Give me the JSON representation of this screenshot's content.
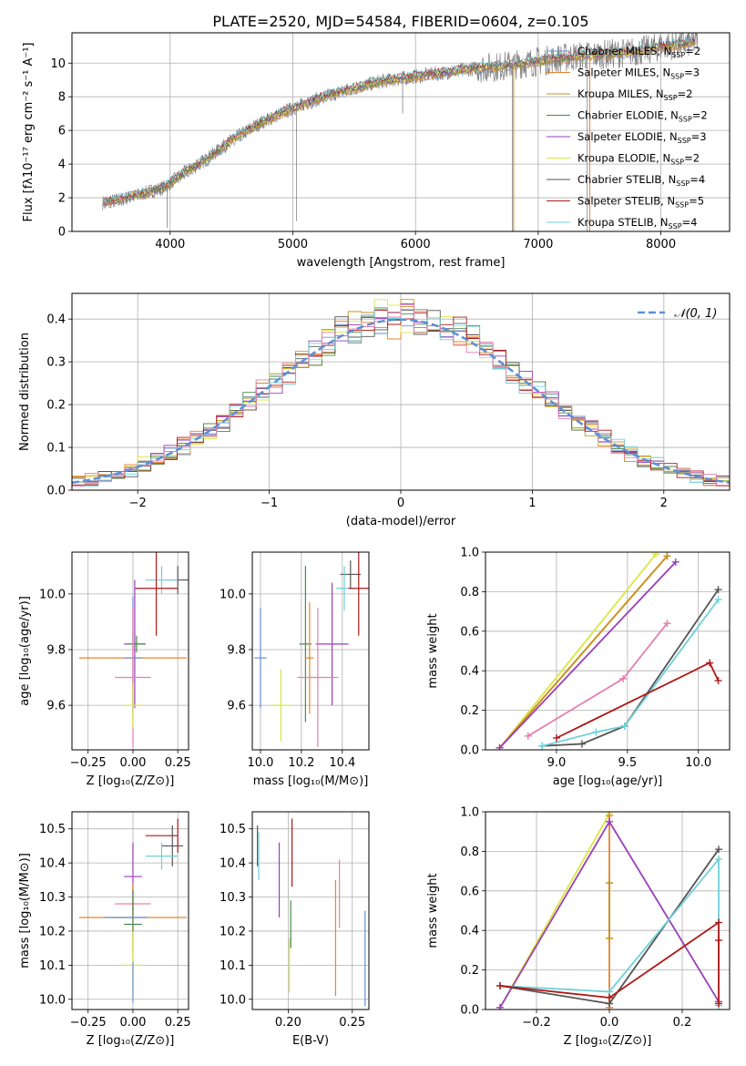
{
  "title": "PLATE=2520, MJD=54584, FIBERID=0604, z=0.105",
  "colors": {
    "chab_miles": "#6a8fd6",
    "salp_miles": "#e8832a",
    "krou_miles": "#c8921a",
    "chab_elodie": "#4a8a4a",
    "salp_elodie": "#9a3fb8",
    "krou_elodie": "#d8e840",
    "chab_stelib": "#555555",
    "salp_stelib": "#b01818",
    "krou_stelib": "#6fd0d8",
    "pink": "#e47fb0",
    "gray_spec": "#808080",
    "gauss": "#5b8fd8",
    "grid": "#b0b0b0"
  },
  "chart_data": [
    {
      "type": "line",
      "name": "spectrum",
      "xlabel": "wavelength [Angstrom, rest frame]",
      "ylabel": "Flux [fλ10⁻¹⁷ erg cm⁻² s⁻¹ A⁻¹]",
      "xlim": [
        3200,
        8560
      ],
      "ylim": [
        0,
        11.8
      ],
      "xticks": [
        4000,
        5000,
        6000,
        7000,
        8000
      ],
      "yticks": [
        0,
        2,
        4,
        6,
        8,
        10
      ],
      "grid": true,
      "legend_position": "right",
      "legend": [
        {
          "label": "Chabrier MILES, N",
          "sub": "SSP",
          "suffix": "=2",
          "color": "chab_miles"
        },
        {
          "label": "Salpeter MILES, N",
          "sub": "SSP",
          "suffix": "=3",
          "color": "salp_miles"
        },
        {
          "label": "Kroupa MILES, N",
          "sub": "SSP",
          "suffix": "=2",
          "color": "krou_miles"
        },
        {
          "label": "Chabrier ELODIE, N",
          "sub": "SSP",
          "suffix": "=2",
          "color": "chab_elodie"
        },
        {
          "label": "Salpeter ELODIE, N",
          "sub": "SSP",
          "suffix": "=3",
          "color": "salp_elodie"
        },
        {
          "label": "Kroupa ELODIE, N",
          "sub": "SSP",
          "suffix": "=2",
          "color": "krou_elodie"
        },
        {
          "label": "Chabrier STELIB, N",
          "sub": "SSP",
          "suffix": "=4",
          "color": "chab_stelib"
        },
        {
          "label": "Salpeter STELIB, N",
          "sub": "SSP",
          "suffix": "=5",
          "color": "salp_stelib"
        },
        {
          "label": "Kroupa STELIB, N",
          "sub": "SSP",
          "suffix": "=4",
          "color": "krou_stelib"
        }
      ],
      "continuum": [
        [
          3450,
          1.7
        ],
        [
          3600,
          1.9
        ],
        [
          3800,
          2.3
        ],
        [
          3950,
          2.6
        ],
        [
          4100,
          3.4
        ],
        [
          4300,
          4.3
        ],
        [
          4500,
          5.4
        ],
        [
          4700,
          6.3
        ],
        [
          4900,
          7.0
        ],
        [
          5100,
          7.6
        ],
        [
          5300,
          8.1
        ],
        [
          5500,
          8.5
        ],
        [
          5700,
          8.9
        ],
        [
          5900,
          9.1
        ],
        [
          6100,
          9.3
        ],
        [
          6300,
          9.5
        ],
        [
          6500,
          9.7
        ],
        [
          6700,
          9.8
        ],
        [
          6900,
          10.0
        ],
        [
          7100,
          10.2
        ],
        [
          7300,
          10.4
        ],
        [
          7500,
          10.5
        ],
        [
          7700,
          10.6
        ],
        [
          7900,
          10.8
        ],
        [
          8000,
          11.0
        ],
        [
          8150,
          11.1
        ],
        [
          8300,
          11.3
        ]
      ]
    },
    {
      "type": "line",
      "name": "residual_histogram",
      "xlabel": "(data-model)/error",
      "ylabel": "Normed distribution",
      "xlim": [
        -2.5,
        2.5
      ],
      "ylim": [
        0,
        0.46
      ],
      "xticks": [
        -2,
        -1,
        0,
        1,
        2
      ],
      "yticks": [
        0.0,
        0.1,
        0.2,
        0.3,
        0.4
      ],
      "grid": true,
      "legend_position": "top-right",
      "legend": [
        {
          "label": "𝒩(0, 1)",
          "color": "gauss"
        }
      ],
      "gaussian": {
        "mu": 0,
        "sigma": 1
      }
    },
    {
      "type": "scatter",
      "name": "z_age",
      "xlabel": "Z [log₁₀(Z/Z⊙)]",
      "ylabel": "age  [log₁₀(age/yr)]",
      "xlim": [
        -0.34,
        0.31
      ],
      "ylim": [
        9.44,
        10.15
      ],
      "xticks": [
        -0.25,
        0.0,
        0.25
      ],
      "yticks": [
        9.6,
        9.8,
        10.0
      ],
      "points": [
        {
          "x": 0.25,
          "y": 10.05,
          "xerr": 0.06,
          "yerr": 0.05,
          "color": "chab_stelib"
        },
        {
          "x": 0.16,
          "y": 10.05,
          "xerr": 0.09,
          "yerr": 0.05,
          "color": "krou_stelib"
        },
        {
          "x": 0.13,
          "y": 10.02,
          "xerr": 0.12,
          "yerr": 0.17,
          "color": "salp_stelib"
        },
        {
          "x": 0.01,
          "y": 9.82,
          "xerr": 0.06,
          "yerr": 0.23,
          "color": "salp_elodie"
        },
        {
          "x": 0.02,
          "y": 9.82,
          "xerr": 0.05,
          "yerr": 0.03,
          "color": "chab_elodie"
        },
        {
          "x": 0.0,
          "y": 9.77,
          "xerr": 0.3,
          "yerr": 0.18,
          "color": "salp_miles"
        },
        {
          "x": 0.0,
          "y": 9.77,
          "xerr": 0.05,
          "yerr": 0.22,
          "color": "chab_miles"
        },
        {
          "x": 0.0,
          "y": 9.7,
          "xerr": 0.1,
          "yerr": 0.25,
          "color": "pink"
        },
        {
          "x": 0.0,
          "y": 9.6,
          "xerr": 0.05,
          "yerr": 0.08,
          "color": "krou_elodie"
        }
      ]
    },
    {
      "type": "scatter",
      "name": "mass_age",
      "xlabel": "mass [log₁₀(M/M⊙)]",
      "ylabel": "",
      "xlim": [
        9.96,
        10.53
      ],
      "ylim": [
        9.44,
        10.15
      ],
      "xticks": [
        10.0,
        10.2,
        10.4
      ],
      "yticks": [
        9.6,
        9.8,
        10.0
      ],
      "points": [
        {
          "x": 10.44,
          "y": 10.07,
          "xerr": 0.05,
          "yerr": 0.05,
          "color": "chab_stelib"
        },
        {
          "x": 10.41,
          "y": 10.02,
          "xerr": 0.04,
          "yerr": 0.08,
          "color": "krou_stelib"
        },
        {
          "x": 10.48,
          "y": 10.02,
          "xerr": 0.05,
          "yerr": 0.17,
          "color": "salp_stelib"
        },
        {
          "x": 10.35,
          "y": 9.82,
          "xerr": 0.08,
          "yerr": 0.22,
          "color": "salp_elodie"
        },
        {
          "x": 10.22,
          "y": 9.82,
          "xerr": 0.03,
          "yerr": 0.28,
          "color": "chab_elodie"
        },
        {
          "x": 10.24,
          "y": 9.77,
          "xerr": 0.02,
          "yerr": 0.2,
          "color": "salp_miles"
        },
        {
          "x": 10.0,
          "y": 9.77,
          "xerr": 0.03,
          "yerr": 0.18,
          "color": "chab_miles"
        },
        {
          "x": 10.28,
          "y": 9.7,
          "xerr": 0.1,
          "yerr": 0.25,
          "color": "pink"
        },
        {
          "x": 10.1,
          "y": 9.6,
          "xerr": 0.05,
          "yerr": 0.13,
          "color": "krou_elodie"
        }
      ]
    },
    {
      "type": "line",
      "name": "age_weight",
      "xlabel": "age  [log₁₀(age/yr)]",
      "ylabel": "mass weight",
      "xlim": [
        8.5,
        10.22
      ],
      "ylim": [
        0,
        1.0
      ],
      "xticks": [
        9.0,
        9.5,
        10.0
      ],
      "yticks": [
        0.0,
        0.2,
        0.4,
        0.6,
        0.8,
        1.0
      ],
      "series": [
        {
          "color": "krou_elodie",
          "x": [
            8.6,
            9.7
          ],
          "y": [
            0.01,
            0.99
          ]
        },
        {
          "color": "salp_miles",
          "x": [
            8.6,
            9.78
          ],
          "y": [
            0.01,
            0.98
          ]
        },
        {
          "color": "krou_miles",
          "x": [
            8.6,
            9.78
          ],
          "y": [
            0.01,
            0.98
          ]
        },
        {
          "color": "salp_elodie",
          "x": [
            8.6,
            9.84
          ],
          "y": [
            0.01,
            0.95
          ]
        },
        {
          "color": "pink",
          "x": [
            8.8,
            9.47,
            9.78
          ],
          "y": [
            0.07,
            0.36,
            0.64
          ]
        },
        {
          "color": "chab_stelib",
          "x": [
            8.9,
            9.18,
            9.48,
            10.14
          ],
          "y": [
            0.02,
            0.03,
            0.12,
            0.81
          ]
        },
        {
          "color": "krou_stelib",
          "x": [
            8.9,
            9.28,
            9.48,
            10.14
          ],
          "y": [
            0.02,
            0.09,
            0.12,
            0.76
          ]
        },
        {
          "color": "salp_stelib",
          "x": [
            9.0,
            10.08,
            10.14
          ],
          "y": [
            0.06,
            0.44,
            0.35
          ]
        }
      ]
    },
    {
      "type": "scatter",
      "name": "z_mass",
      "xlabel": "Z [log₁₀(Z/Z⊙)]",
      "ylabel": "mass [log₁₀(M/M⊙)]",
      "xlim": [
        -0.34,
        0.31
      ],
      "ylim": [
        9.97,
        10.55
      ],
      "xticks": [
        -0.25,
        0.0,
        0.25
      ],
      "yticks": [
        10.0,
        10.1,
        10.2,
        10.3,
        10.4,
        10.5
      ],
      "points": [
        {
          "x": 0.25,
          "y": 10.48,
          "xerr": 0.0,
          "yerr": 0.05,
          "color": "salp_stelib"
        },
        {
          "x": 0.16,
          "y": 10.48,
          "xerr": 0.09,
          "yerr": 0.0,
          "color": "salp_stelib"
        },
        {
          "x": 0.22,
          "y": 10.45,
          "xerr": 0.06,
          "yerr": 0.06,
          "color": "chab_stelib"
        },
        {
          "x": 0.16,
          "y": 10.42,
          "xerr": 0.09,
          "yerr": 0.04,
          "color": "krou_stelib"
        },
        {
          "x": 0.0,
          "y": 10.36,
          "xerr": 0.05,
          "yerr": 0.1,
          "color": "salp_elodie"
        },
        {
          "x": 0.0,
          "y": 10.28,
          "xerr": 0.1,
          "yerr": 0.05,
          "color": "pink"
        },
        {
          "x": 0.0,
          "y": 10.24,
          "xerr": 0.3,
          "yerr": 0.1,
          "color": "salp_miles"
        },
        {
          "x": 0.0,
          "y": 10.22,
          "xerr": 0.05,
          "yerr": 0.1,
          "color": "chab_elodie"
        },
        {
          "x": -0.04,
          "y": 10.24,
          "xerr": 0.12,
          "yerr": 0.0,
          "color": "chab_miles"
        },
        {
          "x": 0.0,
          "y": 10.1,
          "xerr": 0.05,
          "yerr": 0.1,
          "color": "krou_elodie"
        },
        {
          "x": 0.0,
          "y": 10.05,
          "xerr": 0.0,
          "yerr": 0.06,
          "color": "chab_miles"
        }
      ]
    },
    {
      "type": "scatter",
      "name": "ebv_mass",
      "xlabel": "E(B-V)",
      "ylabel": "",
      "xlim": [
        0.172,
        0.263
      ],
      "ylim": [
        9.97,
        10.55
      ],
      "xticks": [
        0.2,
        0.25
      ],
      "yticks": [
        10.0,
        10.1,
        10.2,
        10.3,
        10.4,
        10.5
      ],
      "points": [
        {
          "x": 0.176,
          "y": 10.45,
          "yerr": 0.06,
          "color": "chab_stelib"
        },
        {
          "x": 0.177,
          "y": 10.42,
          "yerr": 0.07,
          "color": "krou_stelib"
        },
        {
          "x": 0.203,
          "y": 10.43,
          "yerr": 0.1,
          "color": "salp_stelib"
        },
        {
          "x": 0.193,
          "y": 10.35,
          "yerr": 0.11,
          "color": "salp_elodie"
        },
        {
          "x": 0.202,
          "y": 10.22,
          "yerr": 0.07,
          "color": "chab_elodie"
        },
        {
          "x": 0.201,
          "y": 10.1,
          "yerr": 0.08,
          "color": "krou_elodie"
        },
        {
          "x": 0.24,
          "y": 10.31,
          "yerr": 0.1,
          "color": "pink"
        },
        {
          "x": 0.237,
          "y": 10.18,
          "yerr": 0.17,
          "color": "salp_miles"
        },
        {
          "x": 0.26,
          "y": 10.12,
          "yerr": 0.14,
          "color": "chab_miles"
        }
      ]
    },
    {
      "type": "line",
      "name": "z_weight",
      "xlabel": "Z [log₁₀(Z/Z⊙)]",
      "ylabel": "mass weight",
      "xlim": [
        -0.34,
        0.33
      ],
      "ylim": [
        0,
        1.0
      ],
      "xticks": [
        -0.2,
        0.0,
        0.2
      ],
      "yticks": [
        0.0,
        0.2,
        0.4,
        0.6,
        0.8,
        1.0
      ],
      "series": [
        {
          "color": "krou_elodie",
          "x": [
            -0.3,
            0.0
          ],
          "y": [
            0.01,
            0.99
          ]
        },
        {
          "color": "salp_miles",
          "x": [
            0.0,
            0.0
          ],
          "y": [
            0.01,
            0.98
          ]
        },
        {
          "color": "krou_miles",
          "x": [
            0.0,
            0.0
          ],
          "y": [
            0.36,
            0.64
          ]
        },
        {
          "color": "salp_elodie",
          "x": [
            -0.3,
            0.0,
            0.3
          ],
          "y": [
            0.01,
            0.95,
            0.04
          ]
        },
        {
          "color": "chab_stelib",
          "x": [
            -0.3,
            0.0,
            0.3
          ],
          "y": [
            0.12,
            0.03,
            0.81
          ]
        },
        {
          "color": "krou_stelib",
          "x": [
            -0.3,
            0.0,
            0.3,
            0.3
          ],
          "y": [
            0.12,
            0.09,
            0.76,
            0.02
          ]
        },
        {
          "color": "salp_stelib",
          "x": [
            -0.3,
            0.0,
            0.3,
            0.3,
            0.3
          ],
          "y": [
            0.12,
            0.06,
            0.44,
            0.35,
            0.03
          ]
        }
      ]
    }
  ]
}
